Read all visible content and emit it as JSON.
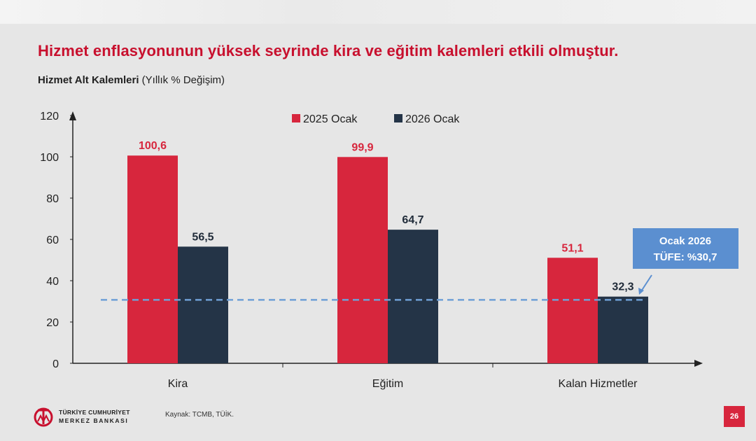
{
  "slide": {
    "title": "Hizmet enflasyonunun yüksek seyrinde kira ve eğitim kalemleri etkili olmuştur.",
    "subtitle_bold": "Hizmet Alt Kalemleri",
    "subtitle_rest": " (Yıllık % Değişim)",
    "source": "Kaynak: TCMB, TÜİK.",
    "page_number": "26",
    "bank_name_line1": "TÜRKİYE CUMHURİYET",
    "bank_name_line2": "MERKEZ BANKASI"
  },
  "colors": {
    "series_2025": "#d7263d",
    "series_2026": "#243447",
    "title": "#c8102e",
    "callout": "#5b8fd0",
    "reference_line": "#6fa0d6"
  },
  "chart_data": {
    "type": "bar",
    "categories": [
      "Kira",
      "Eğitim",
      "Kalan Hizmetler"
    ],
    "series": [
      {
        "name": "2025 Ocak",
        "values": [
          100.6,
          99.9,
          51.1
        ],
        "labels": [
          "100,6",
          "99,9",
          "51,1"
        ]
      },
      {
        "name": "2026 Ocak",
        "values": [
          56.5,
          64.7,
          32.3
        ],
        "labels": [
          "56,5",
          "64,7",
          "32,3"
        ]
      }
    ],
    "ylim": [
      0,
      120
    ],
    "yticks": [
      0,
      20,
      40,
      60,
      80,
      100,
      120
    ],
    "legend_position": "top-center",
    "reference_line": {
      "value": 30.7,
      "style": "dashed"
    },
    "annotation": {
      "line1": "Ocak 2026",
      "line2": "TÜFE:  %30,7"
    }
  }
}
